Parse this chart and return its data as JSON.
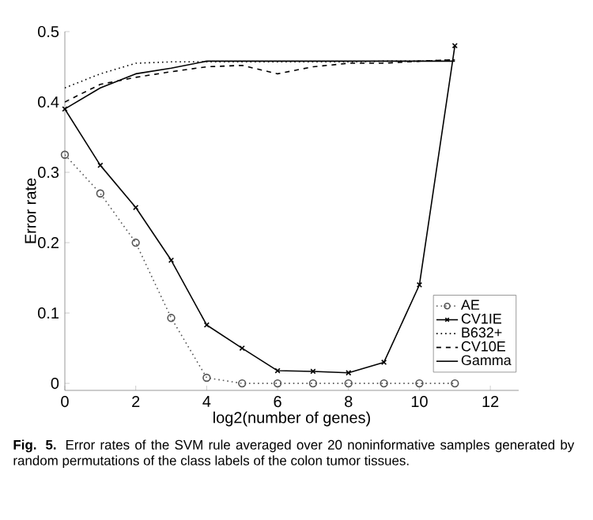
{
  "chart_data": {
    "type": "line",
    "xlabel": "log2(number of genes)",
    "ylabel": "Error rate",
    "x": [
      0,
      1,
      2,
      3,
      4,
      5,
      6,
      7,
      8,
      9,
      10,
      11
    ],
    "series": [
      {
        "name": "AE",
        "color": "#555555",
        "marker": "circle",
        "line_style": "dotted",
        "values": [
          0.325,
          0.27,
          0.2,
          0.093,
          0.008,
          0,
          0,
          0,
          0,
          0,
          0,
          0
        ]
      },
      {
        "name": "CV1IE",
        "color": "#000000",
        "marker": "cross",
        "line_style": "solid",
        "values": [
          0.39,
          0.31,
          0.25,
          0.175,
          0.083,
          0.05,
          0.018,
          0.017,
          0.015,
          0.03,
          0.14,
          0.48
        ]
      },
      {
        "name": "B632+",
        "color": "#000000",
        "marker": "none",
        "line_style": "dotted",
        "values": [
          0.42,
          0.44,
          0.455,
          0.457,
          0.457,
          0.457,
          0.457,
          0.457,
          0.457,
          0.458,
          0.458,
          0.46
        ]
      },
      {
        "name": "CV10E",
        "color": "#000000",
        "marker": "none",
        "line_style": "dashed",
        "values": [
          0.4,
          0.425,
          0.435,
          0.443,
          0.45,
          0.452,
          0.44,
          0.45,
          0.455,
          0.455,
          0.458,
          0.46
        ]
      },
      {
        "name": "Gamma",
        "color": "#000000",
        "marker": "none",
        "line_style": "solid",
        "values": [
          0.39,
          0.42,
          0.44,
          0.448,
          0.458,
          0.458,
          0.458,
          0.458,
          0.458,
          0.458,
          0.458,
          0.458
        ]
      }
    ],
    "xlim": [
      0,
      12.8
    ],
    "ylim": [
      -0.01,
      0.5
    ],
    "xticks": [
      0,
      2,
      4,
      6,
      8,
      10,
      12
    ],
    "yticks": [
      0,
      0.1,
      0.2,
      0.3,
      0.4,
      0.5
    ],
    "grid": false,
    "legend": "bottom right",
    "annotations": [
      "**Fig. 5.** Error rates of the SVM rule averaged over 20 noninformative samples generated by random permutations of the class labels of the colon tumor tissues."
    ]
  }
}
